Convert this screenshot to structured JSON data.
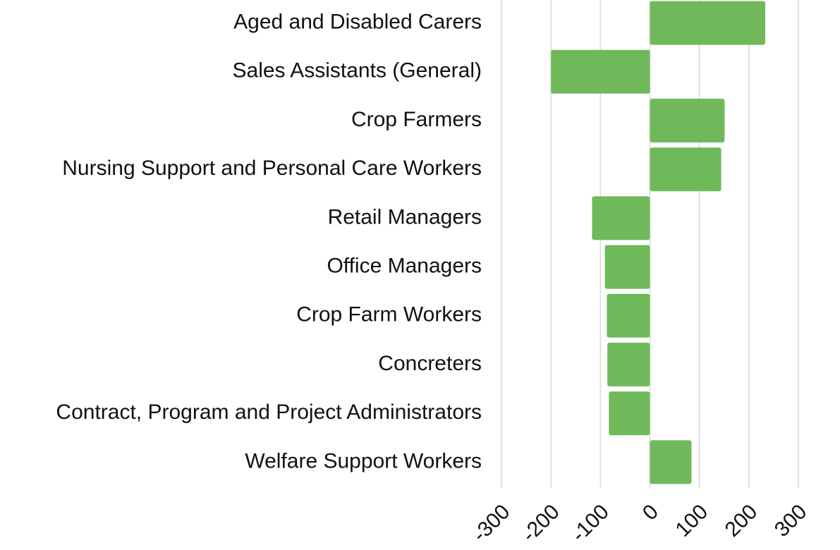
{
  "chart_data": {
    "type": "barh",
    "categories": [
      "Aged and Disabled Carers",
      "Sales Assistants (General)",
      "Crop Farmers",
      "Nursing Support and Personal Care Workers",
      "Retail Managers",
      "Office Managers",
      "Crop Farm Workers",
      "Concreters",
      "Contract, Program and Project Administrators",
      "Welfare Support Workers"
    ],
    "values": [
      233,
      -200,
      151,
      144,
      -117,
      -91,
      -87,
      -86,
      -83,
      84
    ],
    "color": "#70b95a",
    "xlim": [
      -300,
      300
    ],
    "xticks": [
      -300,
      -200,
      -100,
      0,
      100,
      200,
      300
    ],
    "grid": true
  }
}
